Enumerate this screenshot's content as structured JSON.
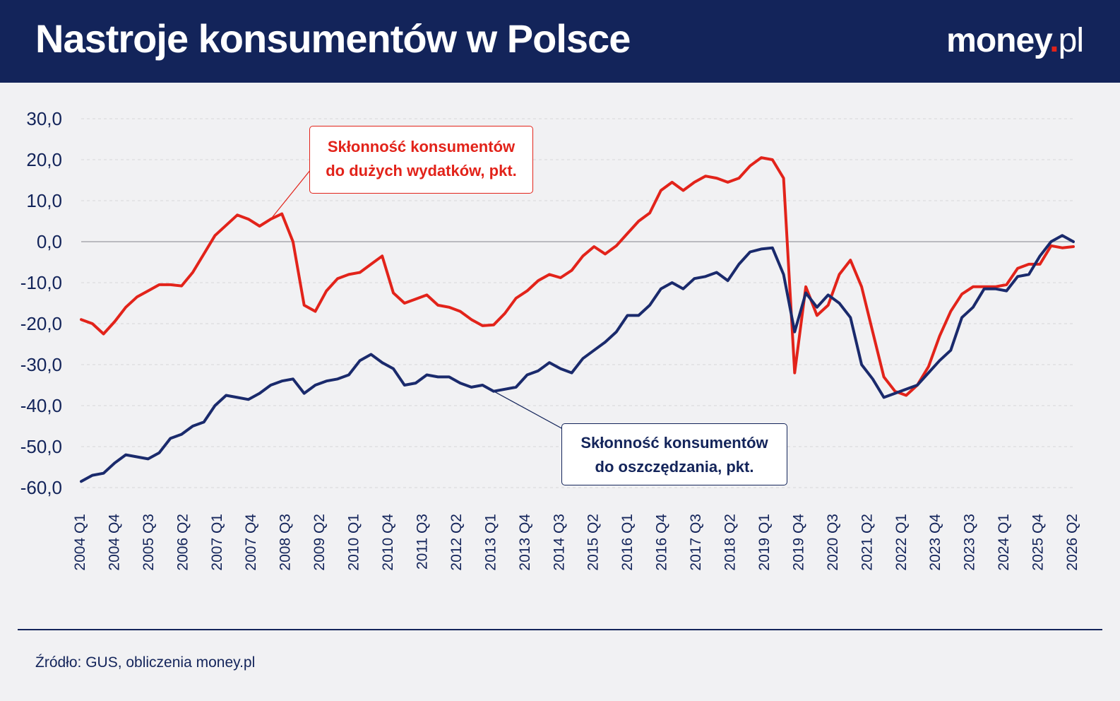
{
  "header": {
    "title": "Nastroje konsumentów w Polsce",
    "logo_brand": "money",
    "logo_dot": ".",
    "logo_tld": "pl"
  },
  "footer": {
    "source": "Źródło: GUS, obliczenia money.pl"
  },
  "callouts": {
    "spending_line1": "Skłonność konsumentów",
    "spending_line2": "do dużych wydatków, pkt.",
    "saving_line1": "Skłonność konsumentów",
    "saving_line2": "do oszczędzania, pkt."
  },
  "colors": {
    "header_bg": "#13245a",
    "spending": "#e2231a",
    "saving": "#1a2a6c",
    "background": "#f1f1f3"
  },
  "chart_data": {
    "type": "line",
    "start_label": "2004 Q1",
    "x_tick_labels": [
      "2004 Q1",
      "2004 Q4",
      "2005 Q3",
      "2006 Q2",
      "2007 Q1",
      "2007 Q4",
      "2008 Q3",
      "2009 Q2",
      "2010 Q1",
      "2010 Q4",
      "2011 Q3",
      "2012 Q2",
      "2013 Q1",
      "2013 Q4",
      "2014 Q3",
      "2015 Q2",
      "2016 Q1",
      "2016 Q4",
      "2017 Q3",
      "2018 Q2",
      "2019 Q1",
      "2019 Q4",
      "2020 Q3",
      "2021 Q2",
      "2022 Q1",
      "2023 Q4",
      "2023 Q3",
      "2024 Q1",
      "2025 Q4",
      "2026 Q2"
    ],
    "y_tick_labels": [
      "30,0",
      "20,0",
      "10,0",
      "0,0",
      "-10,0",
      "-20,0",
      "-30,0",
      "-40,0",
      "-50,0",
      "-60,0"
    ],
    "ylim": [
      -60,
      30
    ],
    "grid": true,
    "series": [
      {
        "name": "Skłonność konsumentów do dużych wydatków, pkt.",
        "color": "#e2231a",
        "values": [
          -19,
          -20,
          -22.5,
          -19.5,
          -16,
          -13.5,
          -12,
          -10.5,
          -10.5,
          -10.8,
          -7.5,
          -3,
          1.5,
          4,
          6.5,
          5.5,
          3.8,
          5.5,
          6.8,
          0,
          -15.5,
          -17,
          -12,
          -9,
          -8,
          -7.5,
          -5.5,
          -3.5,
          -12.5,
          -15,
          -14,
          -13,
          -15.5,
          -16,
          -17,
          -19,
          -20.5,
          -20.3,
          -17.5,
          -13.8,
          -12,
          -9.5,
          -8,
          -8.8,
          -7,
          -3.5,
          -1.2,
          -3,
          -1,
          2,
          5,
          7,
          12.5,
          14.5,
          12.5,
          14.5,
          16,
          15.5,
          14.5,
          15.5,
          18.5,
          20.5,
          20,
          15.5,
          -32,
          -11,
          -18,
          -15.5,
          -8,
          -4.5,
          -11,
          -22,
          -33,
          -36.5,
          -37.5,
          -35,
          -30.5,
          -23,
          -17,
          -12.8,
          -11,
          -11,
          -11,
          -10.5,
          -6.5,
          -5.5,
          -5.5,
          -1,
          -1.5,
          -1.2
        ]
      },
      {
        "name": "Skłonność konsumentów do oszczędzania, pkt.",
        "color": "#1a2a6c",
        "values": [
          -58.5,
          -57,
          -56.5,
          -54,
          -52,
          -52.5,
          -53,
          -51.5,
          -48,
          -47,
          -45,
          -44,
          -40,
          -37.5,
          -38,
          -38.5,
          -37,
          -35,
          -34,
          -33.5,
          -37,
          -35,
          -34,
          -33.5,
          -32.5,
          -29,
          -27.5,
          -29.5,
          -31,
          -35,
          -34.5,
          -32.5,
          -33,
          -33,
          -34.5,
          -35.5,
          -35,
          -36.5,
          -36,
          -35.5,
          -32.5,
          -31.5,
          -29.5,
          -31,
          -32,
          -28.5,
          -26.5,
          -24.5,
          -22,
          -18,
          -18,
          -15.5,
          -11.5,
          -10,
          -11.5,
          -9,
          -8.5,
          -7.5,
          -9.5,
          -5.5,
          -2.5,
          -1.8,
          -1.5,
          -8,
          -22,
          -12.5,
          -16,
          -13,
          -15,
          -18.5,
          -30,
          -33.5,
          -38,
          -37,
          -36,
          -35,
          -32,
          -29,
          -26.5,
          -18.5,
          -16,
          -11.5,
          -11.5,
          -12,
          -8.5,
          -8,
          -3.5,
          0,
          1.5,
          0
        ]
      }
    ]
  }
}
